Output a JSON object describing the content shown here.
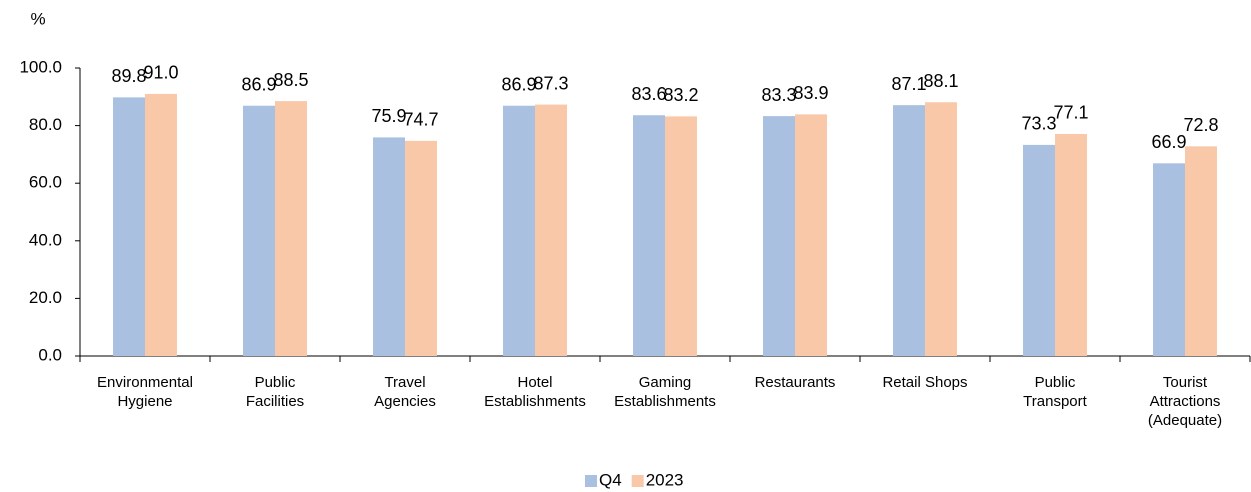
{
  "chart_data": {
    "type": "bar",
    "y_label": "%",
    "categories": [
      "Environmental\nHygiene",
      "Public\nFacilities",
      "Travel\nAgencies",
      "Hotel\nEstablishments",
      "Gaming\nEstablishments",
      "Restaurants",
      "Retail Shops",
      "Public\nTransport",
      "Tourist\nAttractions\n(Adequate)"
    ],
    "series": [
      {
        "name": "Q4",
        "color": "#a9c0e0",
        "values": [
          89.8,
          86.9,
          75.9,
          86.9,
          83.6,
          83.3,
          87.1,
          73.3,
          66.9
        ],
        "value_labels": [
          "89.8",
          "86.9",
          "75.9",
          "86.9",
          "83.6",
          "83.3",
          "87.1",
          "73.3",
          "66.9"
        ]
      },
      {
        "name": "2023",
        "color": "#f8c8a8",
        "values": [
          91,
          88.5,
          74.7,
          87.3,
          83.2,
          83.9,
          88.1,
          77.1,
          72.8
        ],
        "value_labels": [
          "91.0",
          "88.5",
          "74.7",
          "87.3",
          "83.2",
          "83.9",
          "88.1",
          "77.1",
          "72.8"
        ]
      }
    ],
    "ylim": [
      0,
      100
    ],
    "yticks": [
      {
        "value": 0,
        "label": "0.0"
      },
      {
        "value": 20,
        "label": "20.0"
      },
      {
        "value": 40,
        "label": "40.0"
      },
      {
        "value": 60,
        "label": "60.0"
      },
      {
        "value": 80,
        "label": "80.0"
      },
      {
        "value": 100,
        "label": "100.0"
      }
    ],
    "grid": false,
    "legend": "bottom"
  }
}
